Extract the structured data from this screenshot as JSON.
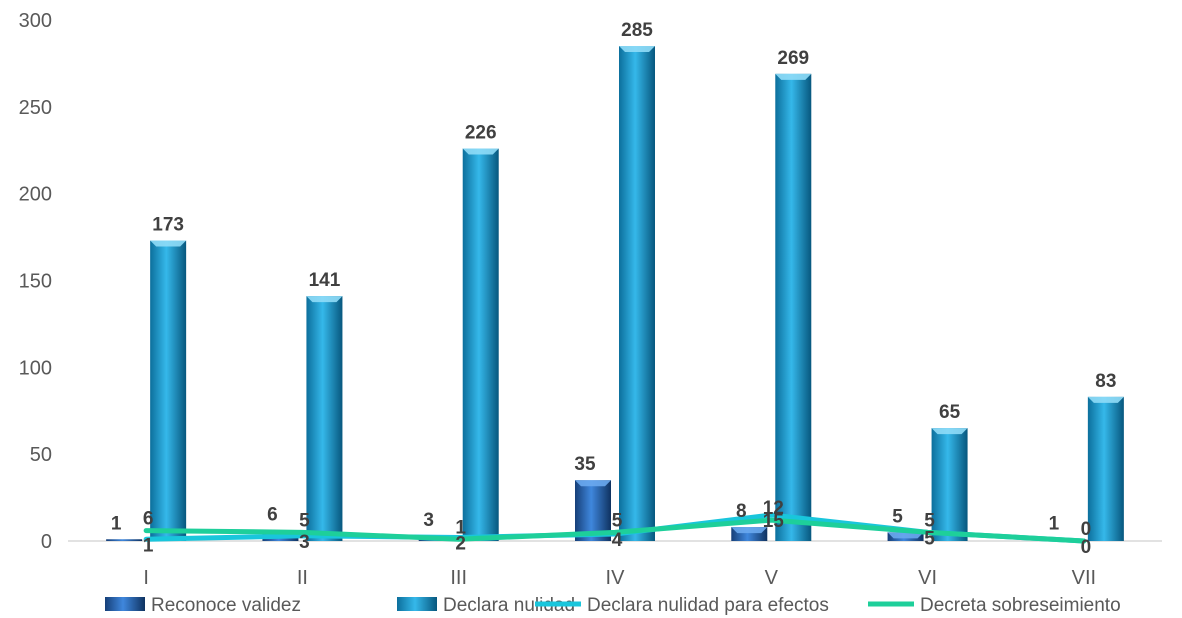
{
  "chart_data": {
    "type": "bar",
    "title": "",
    "xlabel": "",
    "ylabel": "",
    "ylim": [
      0,
      300
    ],
    "yticks": [
      0,
      50,
      100,
      150,
      200,
      250,
      300
    ],
    "grid": false,
    "legend": "bottom",
    "categories": [
      "I",
      "II",
      "III",
      "IV",
      "V",
      "VI",
      "VII"
    ],
    "series": [
      {
        "name": "Reconoce validez",
        "kind": "bar",
        "color": "#1f5fb0",
        "values": [
          1,
          6,
          3,
          35,
          8,
          5,
          1
        ]
      },
      {
        "name": "Declara nulidad",
        "kind": "bar",
        "color": "#1aa0d8",
        "values": [
          173,
          141,
          226,
          285,
          269,
          65,
          83
        ]
      },
      {
        "name": "Declara nulidad para efectos",
        "kind": "line",
        "color": "#19c6dc",
        "values": [
          1,
          3,
          2,
          4,
          15,
          5,
          0
        ]
      },
      {
        "name": "Decreta sobreseimiento",
        "kind": "line",
        "color": "#1ecf9a",
        "values": [
          6,
          5,
          1,
          5,
          12,
          5,
          0
        ]
      }
    ]
  }
}
